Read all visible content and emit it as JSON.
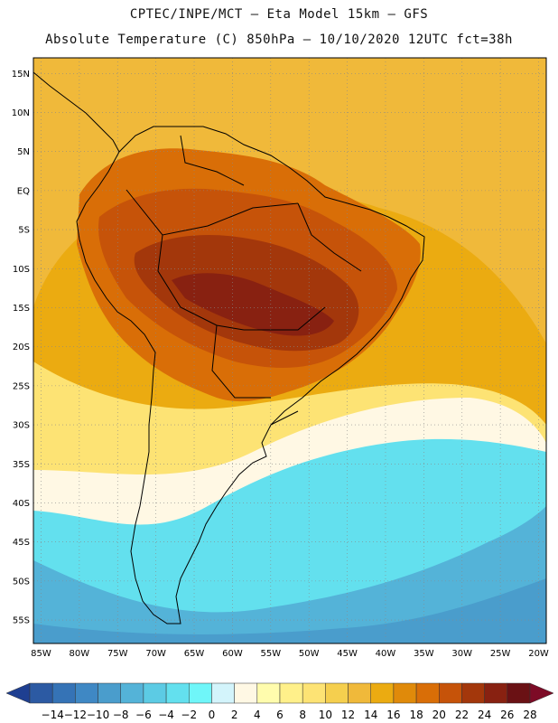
{
  "header": {
    "line1": "CPTEC/INPE/MCT –  Eta Model 15km – GFS",
    "line2": "Absolute Temperature (C) 850hPa – 10/10/2020 12UTC fct=38h"
  },
  "map": {
    "lat_labels": [
      "15N",
      "10N",
      "5N",
      "EQ",
      "5S",
      "10S",
      "15S",
      "20S",
      "25S",
      "30S",
      "35S",
      "40S",
      "45S",
      "50S",
      "55S"
    ],
    "lon_labels": [
      "85W",
      "80W",
      "75W",
      "70W",
      "65W",
      "60W",
      "55W",
      "50W",
      "45W",
      "40W",
      "35W",
      "30W",
      "25W",
      "20W"
    ],
    "lat_range": [
      17,
      -58
    ],
    "lon_range": [
      -86,
      -19
    ]
  },
  "colorbar": {
    "labels": [
      "-14",
      "-12",
      "-10",
      "-8",
      "-6",
      "-4",
      "-2",
      "0",
      "2",
      "4",
      "6",
      "8",
      "10",
      "12",
      "14",
      "16",
      "18",
      "20",
      "22",
      "24",
      "26",
      "28"
    ],
    "colors": [
      "#1e3f91",
      "#2c5aa3",
      "#3573b6",
      "#3f88c4",
      "#4a9dcc",
      "#54b3d8",
      "#5ccbe4",
      "#63e0ee",
      "#6ff6f9",
      "#d3f4fb",
      "#fff8e4",
      "#fffcad",
      "#fff08a",
      "#fde374",
      "#f5cf4e",
      "#f0b93a",
      "#ebab11",
      "#e08a0a",
      "#d96e07",
      "#c65309",
      "#a3370b",
      "#882111",
      "#6a1114",
      "#7d0b26"
    ]
  },
  "fields": {
    "ocean_base": "#ebab11",
    "tropics_warm": "#f0b93a",
    "land_warm": "#d96e07",
    "land_hot": "#c65309",
    "land_hottest": "#a3370b",
    "land_core": "#882111",
    "south_mild": "#fde374",
    "south_cool": "#fff8e4",
    "south_cold": "#63e0ee",
    "south_colder": "#54b3d8",
    "south_coldest": "#4a9dcc",
    "coast": "#000000",
    "grid": "#888888"
  }
}
